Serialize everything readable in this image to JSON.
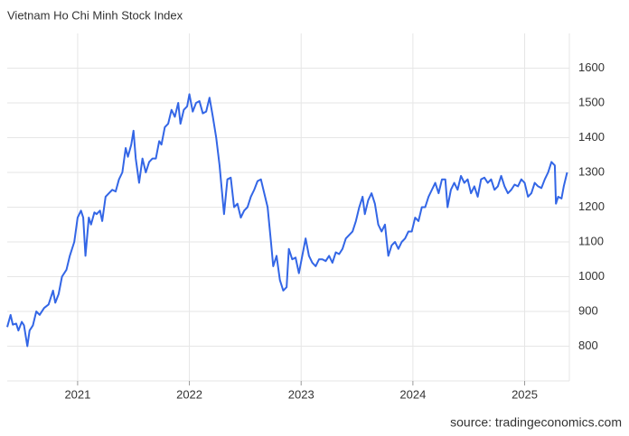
{
  "chart_data": {
    "type": "line",
    "title": "Vietnam Ho Chi Minh Stock Index",
    "source": "source: tradingeconomics.com",
    "color": "#3366e6",
    "xlim": [
      2020.37,
      2025.4
    ],
    "xticks": [
      2021,
      2022,
      2023,
      2024,
      2025
    ],
    "ylim": [
      700,
      1700
    ],
    "yticks": [
      800,
      900,
      1000,
      1100,
      1200,
      1300,
      1400,
      1500,
      1600
    ],
    "grid": true,
    "x": [
      2020.37,
      2020.4,
      2020.42,
      2020.45,
      2020.47,
      2020.5,
      2020.52,
      2020.55,
      2020.57,
      2020.6,
      2020.63,
      2020.66,
      2020.7,
      2020.74,
      2020.78,
      2020.8,
      2020.83,
      2020.86,
      2020.9,
      2020.93,
      2020.97,
      2021.0,
      2021.03,
      2021.05,
      2021.07,
      2021.1,
      2021.12,
      2021.15,
      2021.17,
      2021.2,
      2021.22,
      2021.25,
      2021.28,
      2021.31,
      2021.34,
      2021.37,
      2021.4,
      2021.43,
      2021.45,
      2021.48,
      2021.5,
      2021.52,
      2021.55,
      2021.58,
      2021.61,
      2021.64,
      2021.67,
      2021.7,
      2021.73,
      2021.75,
      2021.78,
      2021.81,
      2021.84,
      2021.87,
      2021.9,
      2021.92,
      2021.95,
      2021.98,
      2022.0,
      2022.03,
      2022.06,
      2022.09,
      2022.12,
      2022.15,
      2022.18,
      2022.21,
      2022.24,
      2022.27,
      2022.31,
      2022.34,
      2022.37,
      2022.4,
      2022.43,
      2022.46,
      2022.49,
      2022.52,
      2022.55,
      2022.58,
      2022.61,
      2022.64,
      2022.67,
      2022.7,
      2022.73,
      2022.75,
      2022.78,
      2022.81,
      2022.84,
      2022.87,
      2022.89,
      2022.92,
      2022.95,
      2022.98,
      2023.01,
      2023.04,
      2023.07,
      2023.1,
      2023.13,
      2023.16,
      2023.19,
      2023.22,
      2023.25,
      2023.28,
      2023.31,
      2023.34,
      2023.37,
      2023.4,
      2023.43,
      2023.46,
      2023.49,
      2023.52,
      2023.55,
      2023.57,
      2023.6,
      2023.63,
      2023.66,
      2023.69,
      2023.72,
      2023.75,
      2023.78,
      2023.81,
      2023.84,
      2023.87,
      2023.9,
      2023.93,
      2023.96,
      2023.99,
      2024.02,
      2024.05,
      2024.08,
      2024.11,
      2024.14,
      2024.17,
      2024.2,
      2024.23,
      2024.26,
      2024.29,
      2024.31,
      2024.34,
      2024.37,
      2024.4,
      2024.43,
      2024.46,
      2024.49,
      2024.52,
      2024.55,
      2024.58,
      2024.61,
      2024.64,
      2024.67,
      2024.7,
      2024.73,
      2024.76,
      2024.79,
      2024.82,
      2024.85,
      2024.88,
      2024.91,
      2024.94,
      2024.97,
      2025.0,
      2025.03,
      2025.06,
      2025.09,
      2025.12,
      2025.15,
      2025.18,
      2025.21,
      2025.24,
      2025.27,
      2025.28,
      2025.3,
      2025.33,
      2025.35,
      2025.38
    ],
    "values": [
      855,
      890,
      862,
      865,
      845,
      870,
      860,
      800,
      845,
      860,
      900,
      890,
      910,
      920,
      960,
      925,
      950,
      1000,
      1020,
      1060,
      1100,
      1170,
      1190,
      1170,
      1060,
      1170,
      1150,
      1185,
      1180,
      1190,
      1160,
      1230,
      1240,
      1250,
      1245,
      1280,
      1300,
      1370,
      1345,
      1380,
      1420,
      1340,
      1270,
      1340,
      1300,
      1330,
      1340,
      1340,
      1390,
      1380,
      1430,
      1440,
      1480,
      1460,
      1500,
      1440,
      1480,
      1490,
      1525,
      1475,
      1500,
      1505,
      1470,
      1475,
      1515,
      1460,
      1400,
      1320,
      1180,
      1280,
      1285,
      1200,
      1210,
      1170,
      1190,
      1200,
      1230,
      1250,
      1275,
      1280,
      1240,
      1200,
      1100,
      1030,
      1060,
      990,
      960,
      970,
      1080,
      1050,
      1055,
      1010,
      1060,
      1110,
      1060,
      1040,
      1030,
      1050,
      1050,
      1045,
      1060,
      1040,
      1070,
      1065,
      1080,
      1110,
      1120,
      1130,
      1160,
      1200,
      1230,
      1180,
      1220,
      1240,
      1210,
      1150,
      1130,
      1150,
      1060,
      1090,
      1100,
      1080,
      1100,
      1110,
      1130,
      1130,
      1170,
      1160,
      1200,
      1200,
      1230,
      1250,
      1270,
      1240,
      1280,
      1280,
      1200,
      1250,
      1270,
      1250,
      1290,
      1270,
      1280,
      1240,
      1260,
      1230,
      1280,
      1285,
      1270,
      1280,
      1250,
      1260,
      1290,
      1260,
      1240,
      1250,
      1265,
      1260,
      1280,
      1270,
      1230,
      1240,
      1270,
      1260,
      1255,
      1280,
      1300,
      1330,
      1320,
      1210,
      1230,
      1225,
      1260,
      1300
    ]
  }
}
